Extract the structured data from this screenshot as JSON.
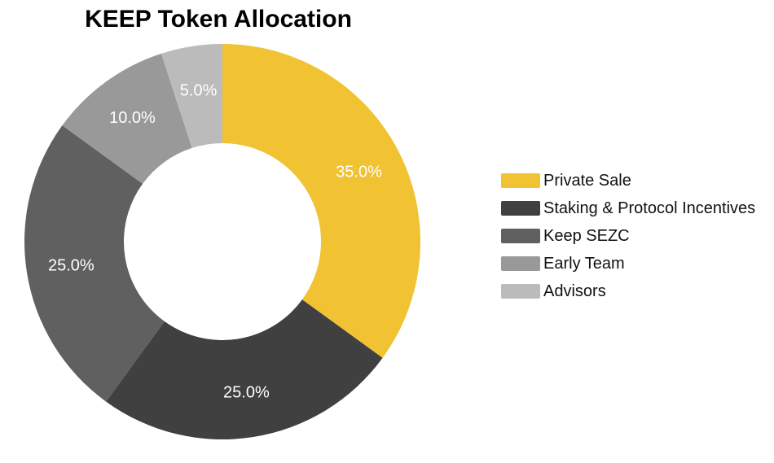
{
  "chart_data": {
    "type": "pie",
    "title": "KEEP Token Allocation",
    "series": [
      {
        "name": "Private Sale",
        "value": 35.0,
        "label": "35.0%",
        "color": "#F1C232"
      },
      {
        "name": "Staking & Protocol Incentives",
        "value": 25.0,
        "label": "25.0%",
        "color": "#404040"
      },
      {
        "name": "Keep SEZC",
        "value": 25.0,
        "label": "25.0%",
        "color": "#606060"
      },
      {
        "name": "Early Team",
        "value": 10.0,
        "label": "10.0%",
        "color": "#999999"
      },
      {
        "name": "Advisors",
        "value": 5.0,
        "label": "5.0%",
        "color": "#BBBBBB"
      }
    ],
    "legend_position": "right",
    "donut": true
  }
}
